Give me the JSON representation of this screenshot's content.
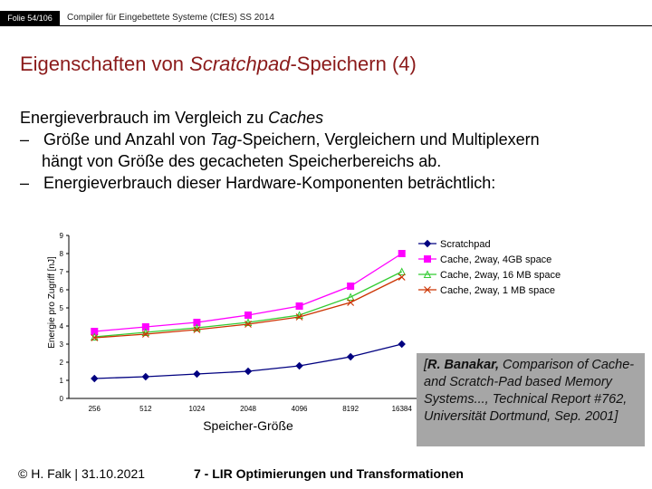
{
  "header": {
    "slide_number": "Folie 54/106",
    "course": "Compiler für Eingebettete Systeme (CfES) SS 2014"
  },
  "title": {
    "prefix": "Eigenschaften von ",
    "italic": "Scratchpad",
    "suffix": "-Speichern (4)"
  },
  "body": {
    "heading_prefix": "Energieverbrauch im Vergleich zu ",
    "heading_italic": "Caches",
    "bullet1_dash": "–",
    "bullet1_prefix": "Größe und Anzahl von ",
    "bullet1_italic": "Tag",
    "bullet1_suffix": "-Speichern, Vergleichern und Multiplexern",
    "bullet1_cont": "hängt von Größe des gecacheten Speicherbereichs ab.",
    "bullet2_dash": "–",
    "bullet2": "Energieverbrauch dieser Hardware-Komponenten beträchtlich:"
  },
  "chart_data": {
    "type": "line",
    "categories": [
      "256",
      "512",
      "1024",
      "2048",
      "4096",
      "8192",
      "16384"
    ],
    "ylabel": "Energie pro Zugriff  [nJ]",
    "xlabel": "Speicher-Größe",
    "ylim": [
      0,
      9
    ],
    "yticks": [
      "0",
      "1",
      "2",
      "3",
      "4",
      "5",
      "6",
      "7",
      "8",
      "9"
    ],
    "legend_position": "top-right",
    "series": [
      {
        "name": "Scratchpad",
        "color": "#000080",
        "marker": "diamond",
        "values": [
          1.1,
          1.2,
          1.35,
          1.5,
          1.8,
          2.3,
          3.0
        ]
      },
      {
        "name": "Cache, 2way, 4GB space",
        "color": "#ff00ff",
        "marker": "square",
        "values": [
          3.7,
          3.95,
          4.2,
          4.6,
          5.1,
          6.2,
          8.0
        ]
      },
      {
        "name": "Cache, 2way, 16 MB space",
        "color": "#33cc33",
        "marker": "triangle",
        "values": [
          3.4,
          3.65,
          3.9,
          4.2,
          4.6,
          5.6,
          7.0
        ]
      },
      {
        "name": "Cache, 2way, 1 MB space",
        "color": "#cc3300",
        "marker": "x",
        "values": [
          3.35,
          3.55,
          3.8,
          4.1,
          4.5,
          5.3,
          6.7
        ]
      }
    ]
  },
  "citation": {
    "author": "R. Banakar,",
    "text": " Comparison of Cache- and Scratch-Pad based Memory Systems..., Technical Report #762, Universität Dortmund, Sep. 2001]"
  },
  "footer": {
    "left": "© H. Falk | 31.10.2021",
    "center": "7 - LIR Optimierungen und Transformationen"
  }
}
